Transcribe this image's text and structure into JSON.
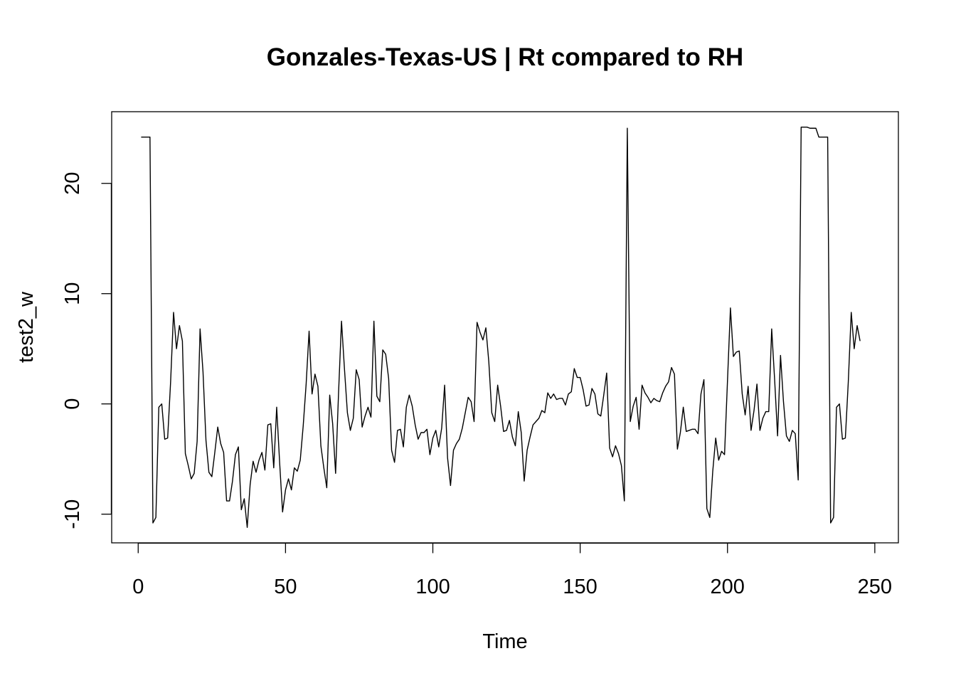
{
  "chart_data": {
    "type": "line",
    "title": "Gonzales-Texas-US | Rt compared to RH",
    "xlabel": "Time",
    "ylabel": "test2_w",
    "xlim": [
      -9,
      258
    ],
    "ylim": [
      -12.6,
      26.5
    ],
    "xticks": [
      0,
      50,
      100,
      150,
      200,
      250
    ],
    "xtick_labels": [
      "0",
      "50",
      "100",
      "150",
      "200",
      "250"
    ],
    "yticks": [
      -10,
      0,
      10,
      20
    ],
    "ytick_labels": [
      "-10",
      "0",
      "10",
      "20"
    ],
    "grid": false,
    "line_color": "#000000",
    "series": [
      {
        "x_start": 1,
        "values": [
          24.2,
          24.2,
          24.2,
          24.2,
          -10.8,
          -10.3,
          -0.3,
          0.0,
          -3.2,
          -3.1,
          2.0,
          8.3,
          5.0,
          7.1,
          5.7,
          -4.5,
          -5.6,
          -6.8,
          -6.3,
          -3.4,
          6.8,
          2.9,
          -3.3,
          -6.2,
          -6.6,
          -4.4,
          -2.1,
          -3.6,
          -4.4,
          -8.8,
          -8.8,
          -7.0,
          -4.6,
          -3.9,
          -9.6,
          -8.6,
          -11.2,
          -7.3,
          -5.2,
          -6.2,
          -5.1,
          -4.4,
          -6.0,
          -1.9,
          -1.8,
          -5.8,
          -0.3,
          -5.3,
          -9.8,
          -7.8,
          -6.8,
          -7.8,
          -5.8,
          -6.1,
          -5.1,
          -2.0,
          1.8,
          6.6,
          0.9,
          2.7,
          1.6,
          -3.8,
          -5.8,
          -7.6,
          0.8,
          -1.8,
          -6.3,
          1.0,
          7.5,
          3.2,
          -0.8,
          -2.4,
          -1.3,
          3.1,
          2.2,
          -2.1,
          -1.1,
          -0.3,
          -1.2,
          7.5,
          0.7,
          0.2,
          4.9,
          4.5,
          2.3,
          -4.2,
          -5.3,
          -2.4,
          -2.3,
          -3.9,
          -0.3,
          0.8,
          -0.2,
          -1.9,
          -3.2,
          -2.6,
          -2.6,
          -2.3,
          -4.6,
          -3.1,
          -2.4,
          -3.9,
          -2.2,
          1.7,
          -4.9,
          -7.4,
          -4.2,
          -3.6,
          -3.2,
          -2.2,
          -0.8,
          0.6,
          0.2,
          -1.6,
          7.4,
          6.5,
          5.8,
          6.9,
          3.8,
          -0.8,
          -1.6,
          1.7,
          -0.2,
          -2.5,
          -2.4,
          -1.5,
          -3.0,
          -3.8,
          -0.7,
          -2.6,
          -7.0,
          -4.2,
          -3.0,
          -1.9,
          -1.6,
          -1.3,
          -0.6,
          -0.8,
          1.0,
          0.5,
          0.9,
          0.4,
          0.5,
          0.5,
          -0.1,
          0.9,
          1.1,
          3.2,
          2.4,
          2.4,
          1.3,
          -0.2,
          -0.1,
          1.4,
          0.9,
          -0.9,
          -1.1,
          0.8,
          2.8,
          -4.0,
          -4.8,
          -3.8,
          -4.5,
          -5.6,
          -8.8,
          25.0,
          -1.6,
          -0.2,
          0.6,
          -2.3,
          1.7,
          1.0,
          0.6,
          0.1,
          0.5,
          0.3,
          0.2,
          1.0,
          1.6,
          2.0,
          3.3,
          2.7,
          -4.1,
          -2.6,
          -0.3,
          -2.5,
          -2.4,
          -2.3,
          -2.3,
          -2.7,
          0.9,
          2.2,
          -9.5,
          -10.3,
          -6.1,
          -3.1,
          -5.1,
          -4.3,
          -4.6,
          2.1,
          8.7,
          4.3,
          4.7,
          4.8,
          0.9,
          -1.0,
          1.6,
          -2.4,
          -0.6,
          1.8,
          -2.4,
          -1.3,
          -0.7,
          -0.7,
          6.8,
          2.2,
          -2.9,
          4.4,
          0.2,
          -2.9,
          -3.4,
          -2.4,
          -2.7,
          -6.9,
          25.1,
          25.1,
          25.1,
          25.0,
          25.0,
          25.0,
          24.2,
          24.2,
          24.2,
          24.2,
          -10.8,
          -10.3,
          -0.3,
          0.0,
          -3.2,
          -3.1,
          2.0,
          8.3,
          5.0,
          7.1,
          5.7
        ]
      }
    ]
  }
}
